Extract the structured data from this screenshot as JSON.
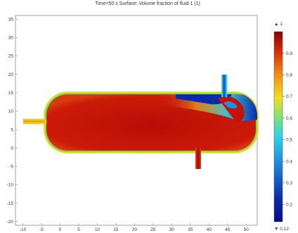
{
  "plot": {
    "title": "Time=50 s   Surface: Volume fraction of fluid 1 (1)",
    "x_ticks": [
      "-10",
      "-5",
      "0",
      "5",
      "10",
      "15",
      "20",
      "25",
      "30",
      "35",
      "40",
      "45",
      "50"
    ],
    "y_ticks": [
      "35",
      "30",
      "25",
      "20",
      "15",
      "10",
      "5",
      "0",
      "-5",
      "-10",
      "-15",
      "-20"
    ],
    "xlim": [
      -12,
      53
    ],
    "ylim": [
      -21,
      36
    ]
  },
  "colorbar": {
    "max_label": "▲ 1",
    "min_label": "▼ 0.12",
    "ticks": [
      "0.9",
      "0.8",
      "0.7",
      "0.6",
      "0.5",
      "0.4",
      "0.3",
      "0.2"
    ]
  },
  "colors": {
    "red": "#c41208",
    "dark_red": "#9a0000",
    "blue": "#0a2aa8",
    "cyan": "#29d2e6",
    "yellow": "#f2d514"
  }
}
